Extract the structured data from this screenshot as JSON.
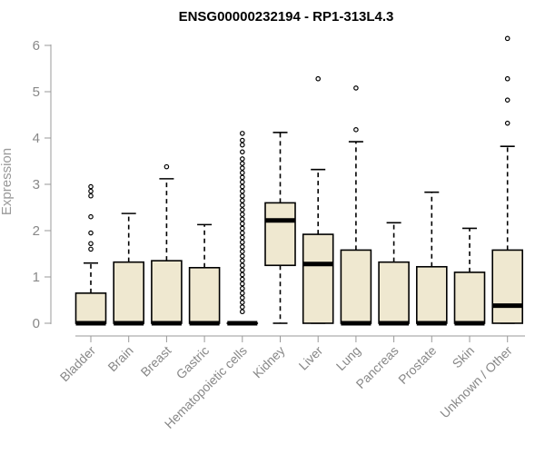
{
  "chart_data": {
    "type": "boxplot",
    "title": "ENSG00000232194 - RP1-313L4.3",
    "ylabel": "Expression",
    "xlabel": "",
    "ylim": [
      0,
      6.2
    ],
    "yticks": [
      "0",
      "1",
      "2",
      "3",
      "4",
      "5",
      "6"
    ],
    "colors": {
      "box_fill": "#efe8d0",
      "box_stroke": "#000000",
      "axis": "#999999"
    },
    "categories": [
      "Bladder",
      "Brain",
      "Breast",
      "Gastric",
      "Hematopoietic cells",
      "Kidney",
      "Liver",
      "Lung",
      "Pancreas",
      "Prostate",
      "Skin",
      "Unknown / Other"
    ],
    "boxes": [
      {
        "min": 0,
        "q1": 0,
        "median": 0,
        "q3": 0.65,
        "max": 1.3,
        "outliers": [
          1.6,
          1.72,
          1.95,
          2.3,
          2.75,
          2.85,
          2.95
        ]
      },
      {
        "min": 0,
        "q1": 0,
        "median": 0,
        "q3": 1.32,
        "max": 2.37,
        "outliers": []
      },
      {
        "min": 0,
        "q1": 0,
        "median": 0,
        "q3": 1.35,
        "max": 3.12,
        "outliers": [
          3.38
        ]
      },
      {
        "min": 0,
        "q1": 0,
        "median": 0,
        "q3": 1.2,
        "max": 2.13,
        "outliers": []
      },
      {
        "min": 0,
        "q1": 0,
        "median": 0,
        "q3": 0,
        "max": 0,
        "outliers": [
          0.25,
          0.35,
          0.45,
          0.55,
          0.65,
          0.75,
          0.85,
          0.95,
          1.05,
          1.15,
          1.25,
          1.35,
          1.45,
          1.55,
          1.65,
          1.75,
          1.85,
          1.95,
          2.05,
          2.15,
          2.25,
          2.35,
          2.45,
          2.55,
          2.65,
          2.75,
          2.85,
          2.95,
          3.05,
          3.15,
          3.25,
          3.35,
          3.45,
          3.55,
          3.7,
          3.85,
          3.95,
          4.1
        ]
      },
      {
        "min": 0,
        "q1": 1.25,
        "median": 2.22,
        "q3": 2.6,
        "max": 4.12,
        "outliers": []
      },
      {
        "min": 0,
        "q1": 0,
        "median": 1.28,
        "q3": 1.92,
        "max": 3.32,
        "outliers": [
          5.28
        ]
      },
      {
        "min": 0,
        "q1": 0,
        "median": 0,
        "q3": 1.58,
        "max": 3.92,
        "outliers": [
          4.18,
          5.08
        ]
      },
      {
        "min": 0,
        "q1": 0,
        "median": 0,
        "q3": 1.32,
        "max": 2.17,
        "outliers": []
      },
      {
        "min": 0,
        "q1": 0,
        "median": 0,
        "q3": 1.22,
        "max": 2.83,
        "outliers": []
      },
      {
        "min": 0,
        "q1": 0,
        "median": 0,
        "q3": 1.1,
        "max": 2.05,
        "outliers": []
      },
      {
        "min": 0,
        "q1": 0,
        "median": 0.38,
        "q3": 1.58,
        "max": 3.82,
        "outliers": [
          4.32,
          4.82,
          5.28,
          6.15
        ]
      }
    ]
  }
}
